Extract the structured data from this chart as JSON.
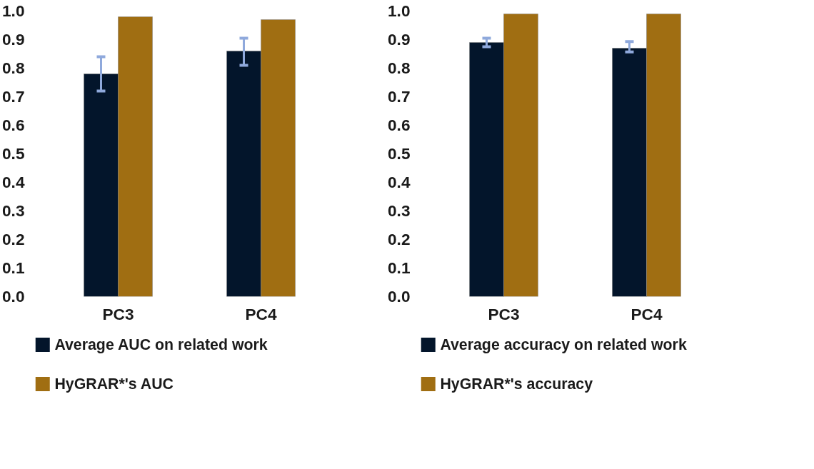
{
  "chart_data": [
    {
      "type": "bar",
      "categories": [
        "PC3",
        "PC4"
      ],
      "ylim": [
        0,
        1.0
      ],
      "yticks": [
        {
          "value": 0,
          "label": "0.0"
        },
        {
          "value": 0.1,
          "label": "0.1"
        },
        {
          "value": 0.2,
          "label": "0.2"
        },
        {
          "value": 0.3,
          "label": "0.3"
        },
        {
          "value": 0.4,
          "label": "0.4"
        },
        {
          "value": 0.5,
          "label": "0.5"
        },
        {
          "value": 0.6,
          "label": "0.6"
        },
        {
          "value": 0.7,
          "label": "0.7"
        },
        {
          "value": 0.8,
          "label": "0.8"
        },
        {
          "value": 0.9,
          "label": "0.9"
        },
        {
          "value": 1.0,
          "label": "1.0"
        }
      ],
      "grid": false,
      "legend": "bottom",
      "series": [
        {
          "name": "Average AUC on related work",
          "color": "#03152b",
          "values": [
            0.78,
            0.86
          ],
          "errors": [
            [
              0.72,
              0.84
            ],
            [
              0.81,
              0.905
            ]
          ]
        },
        {
          "name": "HyGRAR*'s AUC",
          "color": "#a06e12",
          "values": [
            0.98,
            0.97
          ]
        }
      ]
    },
    {
      "type": "bar",
      "categories": [
        "PC3",
        "PC4"
      ],
      "ylim": [
        0,
        1.0
      ],
      "yticks": [
        {
          "value": 0,
          "label": "0.0"
        },
        {
          "value": 0.1,
          "label": "0.1"
        },
        {
          "value": 0.2,
          "label": "0.2"
        },
        {
          "value": 0.3,
          "label": "0.3"
        },
        {
          "value": 0.4,
          "label": "0.4"
        },
        {
          "value": 0.5,
          "label": "0.5"
        },
        {
          "value": 0.6,
          "label": "0.6"
        },
        {
          "value": 0.7,
          "label": "0.7"
        },
        {
          "value": 0.8,
          "label": "0.8"
        },
        {
          "value": 0.9,
          "label": "0.9"
        },
        {
          "value": 1.0,
          "label": "1.0"
        }
      ],
      "grid": false,
      "legend": "bottom",
      "series": [
        {
          "name": "Average accuracy on related work",
          "color": "#03152b",
          "values": [
            0.89,
            0.87
          ],
          "errors": [
            [
              0.875,
              0.905
            ],
            [
              0.857,
              0.893
            ]
          ]
        },
        {
          "name": "HyGRAR*'s accuracy",
          "color": "#a06e12",
          "values": [
            0.99,
            0.99
          ]
        }
      ]
    }
  ]
}
